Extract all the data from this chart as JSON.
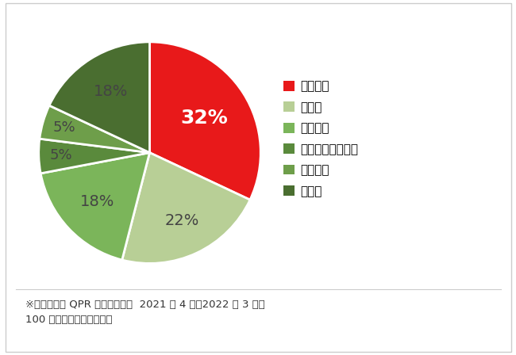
{
  "labels": [
    "パクチー",
    "バジル",
    "ルッコラ",
    "イタリアンパセリ",
    "クレゾン",
    "その他"
  ],
  "values": [
    32,
    22,
    18,
    5,
    5,
    18
  ],
  "colors": [
    "#e8191a",
    "#b8cf96",
    "#7bb55a",
    "#5a8a3c",
    "#6e9e4a",
    "#4a6e30"
  ],
  "pct_labels": [
    "32%",
    "22%",
    "18%",
    "5%",
    "5%",
    "18%"
  ],
  "pct_colors": [
    "#ffffff",
    "#3a3a3a",
    "#3a3a3a",
    "#3a3a3a",
    "#3a3a3a",
    "#3a3a3a"
  ],
  "legend_marker_colors": [
    "#e8191a",
    "#b8cf96",
    "#7bb55a",
    "#5a8a3c",
    "#6e9e4a",
    "#4a6e30"
  ],
  "footer_line1": "※マクロミル QPR ハーブ類市場  2021 年 4 月～2022 年 3 月、",
  "footer_line2": "100 人あたり購入金額指数",
  "bg_color": "#ffffff",
  "text_color": "#333333",
  "label_fontsize": 14,
  "legend_fontsize": 11,
  "footer_fontsize": 9.5
}
